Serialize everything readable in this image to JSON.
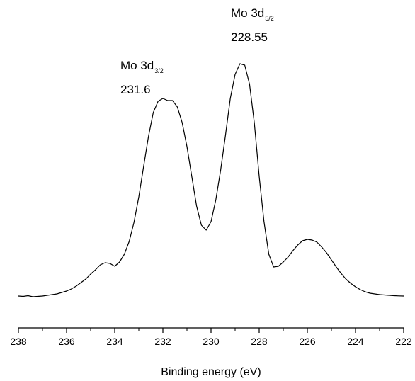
{
  "chart_data": {
    "type": "line",
    "title": "",
    "xlabel": "Binding energy (eV)",
    "ylabel": "",
    "xlim": [
      238,
      222
    ],
    "x_reversed": true,
    "y_axis_visible": false,
    "grid": false,
    "x_ticks": [
      238,
      236,
      234,
      232,
      230,
      228,
      226,
      224,
      222
    ],
    "x_tick_labels": [
      "238",
      "236",
      "234",
      "232",
      "230",
      "228",
      "226",
      "224",
      "222"
    ],
    "series": [
      {
        "color": "#000000",
        "x": [
          238.0,
          237.8,
          237.6,
          237.4,
          237.2,
          237.0,
          236.8,
          236.6,
          236.4,
          236.2,
          236.0,
          235.8,
          235.6,
          235.4,
          235.2,
          235.0,
          234.8,
          234.6,
          234.4,
          234.2,
          234.0,
          233.8,
          233.6,
          233.4,
          233.2,
          233.0,
          232.8,
          232.6,
          232.4,
          232.2,
          232.0,
          231.8,
          231.6,
          231.4,
          231.2,
          231.0,
          230.8,
          230.6,
          230.4,
          230.2,
          230.0,
          229.8,
          229.6,
          229.4,
          229.2,
          229.0,
          228.8,
          228.6,
          228.4,
          228.2,
          228.0,
          227.8,
          227.6,
          227.4,
          227.2,
          227.0,
          226.8,
          226.6,
          226.4,
          226.2,
          226.0,
          225.8,
          225.6,
          225.4,
          225.2,
          225.0,
          224.8,
          224.6,
          224.4,
          224.2,
          224.0,
          223.8,
          223.6,
          223.4,
          223.2,
          223.0,
          222.8,
          222.6,
          222.4,
          222.2,
          222.0
        ],
        "y": [
          3.0,
          2.5,
          3.5,
          2.0,
          2.5,
          3.0,
          4.0,
          5.0,
          6.0,
          8.0,
          10.0,
          13.0,
          17.0,
          22.0,
          27.0,
          34.0,
          40.0,
          47.0,
          50.0,
          49.0,
          45.0,
          51.0,
          62.0,
          80.0,
          107.0,
          143.0,
          186.0,
          228.0,
          262.0,
          278.0,
          282.0,
          279.0,
          279.0,
          270.0,
          248.0,
          214.0,
          172.0,
          130.0,
          103.0,
          96.0,
          108.0,
          139.0,
          181.0,
          230.0,
          282.0,
          316.0,
          331.0,
          329.0,
          302.0,
          247.0,
          172.0,
          108.0,
          62.0,
          44.0,
          45.0,
          51.0,
          58.0,
          67.0,
          75.0,
          81.0,
          83.0,
          82.0,
          79.0,
          72.0,
          64.0,
          54.0,
          44.0,
          35.0,
          27.0,
          21.0,
          16.0,
          12.0,
          9.0,
          7.0,
          6.0,
          5.0,
          4.5,
          4.0,
          3.5,
          3.2,
          3.0
        ]
      }
    ],
    "annotations": [
      {
        "label": "Mo 3d",
        "subscript": "3/2",
        "value": "231.6"
      },
      {
        "label": "Mo 3d",
        "subscript": "5/2",
        "value": "228.55"
      }
    ]
  }
}
